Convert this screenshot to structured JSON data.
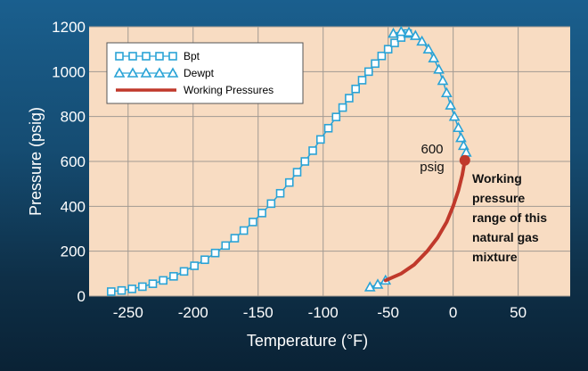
{
  "chart_data": {
    "type": "line",
    "title": "",
    "xlabel": "Temperature (°F)",
    "ylabel": "Pressure (psig)",
    "xlim": [
      -280,
      90
    ],
    "ylim": [
      0,
      1200
    ],
    "x_ticks": [
      -250,
      -200,
      -150,
      -100,
      -50,
      0,
      50
    ],
    "y_ticks": [
      0,
      200,
      400,
      600,
      800,
      1000,
      1200
    ],
    "grid": true,
    "legend_position": "top-left",
    "colors": {
      "plot_bg": "#f8dcc2",
      "grid": "#a29a92",
      "bpt": "#2aa3d6",
      "dewpt": "#2aa3d6",
      "working": "#c0392b"
    },
    "series": [
      {
        "name": "Bpt",
        "marker": "square",
        "x": [
          -263,
          -255,
          -247,
          -239,
          -231,
          -223,
          -215,
          -207,
          -199,
          -191,
          -183,
          -175,
          -168,
          -161,
          -154,
          -147,
          -140,
          -133,
          -126,
          -120,
          -114,
          -108,
          -102,
          -96,
          -90,
          -85,
          -80,
          -75,
          -70,
          -65,
          -60,
          -55,
          -50,
          -45,
          -40,
          -35
        ],
        "y": [
          20,
          25,
          32,
          42,
          55,
          70,
          88,
          110,
          135,
          162,
          192,
          225,
          258,
          292,
          330,
          370,
          412,
          458,
          506,
          552,
          600,
          648,
          698,
          748,
          798,
          840,
          882,
          923,
          962,
          1000,
          1036,
          1070,
          1100,
          1128,
          1152,
          1170
        ]
      },
      {
        "name": "Dewpt",
        "marker": "triangle",
        "x": [
          -64,
          -58,
          -52,
          -46,
          -40,
          -34,
          -29,
          -24,
          -19,
          -15,
          -11,
          -8,
          -5,
          -2,
          1,
          4,
          6,
          8,
          10
        ],
        "y": [
          40,
          52,
          70,
          1170,
          1178,
          1175,
          1160,
          1135,
          1100,
          1060,
          1010,
          960,
          905,
          850,
          800,
          750,
          705,
          670,
          640
        ]
      },
      {
        "name": "Working Pressures",
        "marker": "line",
        "x": [
          -52,
          -40,
          -30,
          -20,
          -12,
          -5,
          0,
          4,
          7,
          9
        ],
        "y": [
          70,
          100,
          140,
          200,
          260,
          330,
          400,
          470,
          540,
          605
        ]
      }
    ],
    "annotations": {
      "pressure_value": "600",
      "pressure_unit": "psig",
      "range_note": [
        "Working",
        "pressure",
        "range of this",
        "natural gas",
        "mixture"
      ]
    }
  }
}
